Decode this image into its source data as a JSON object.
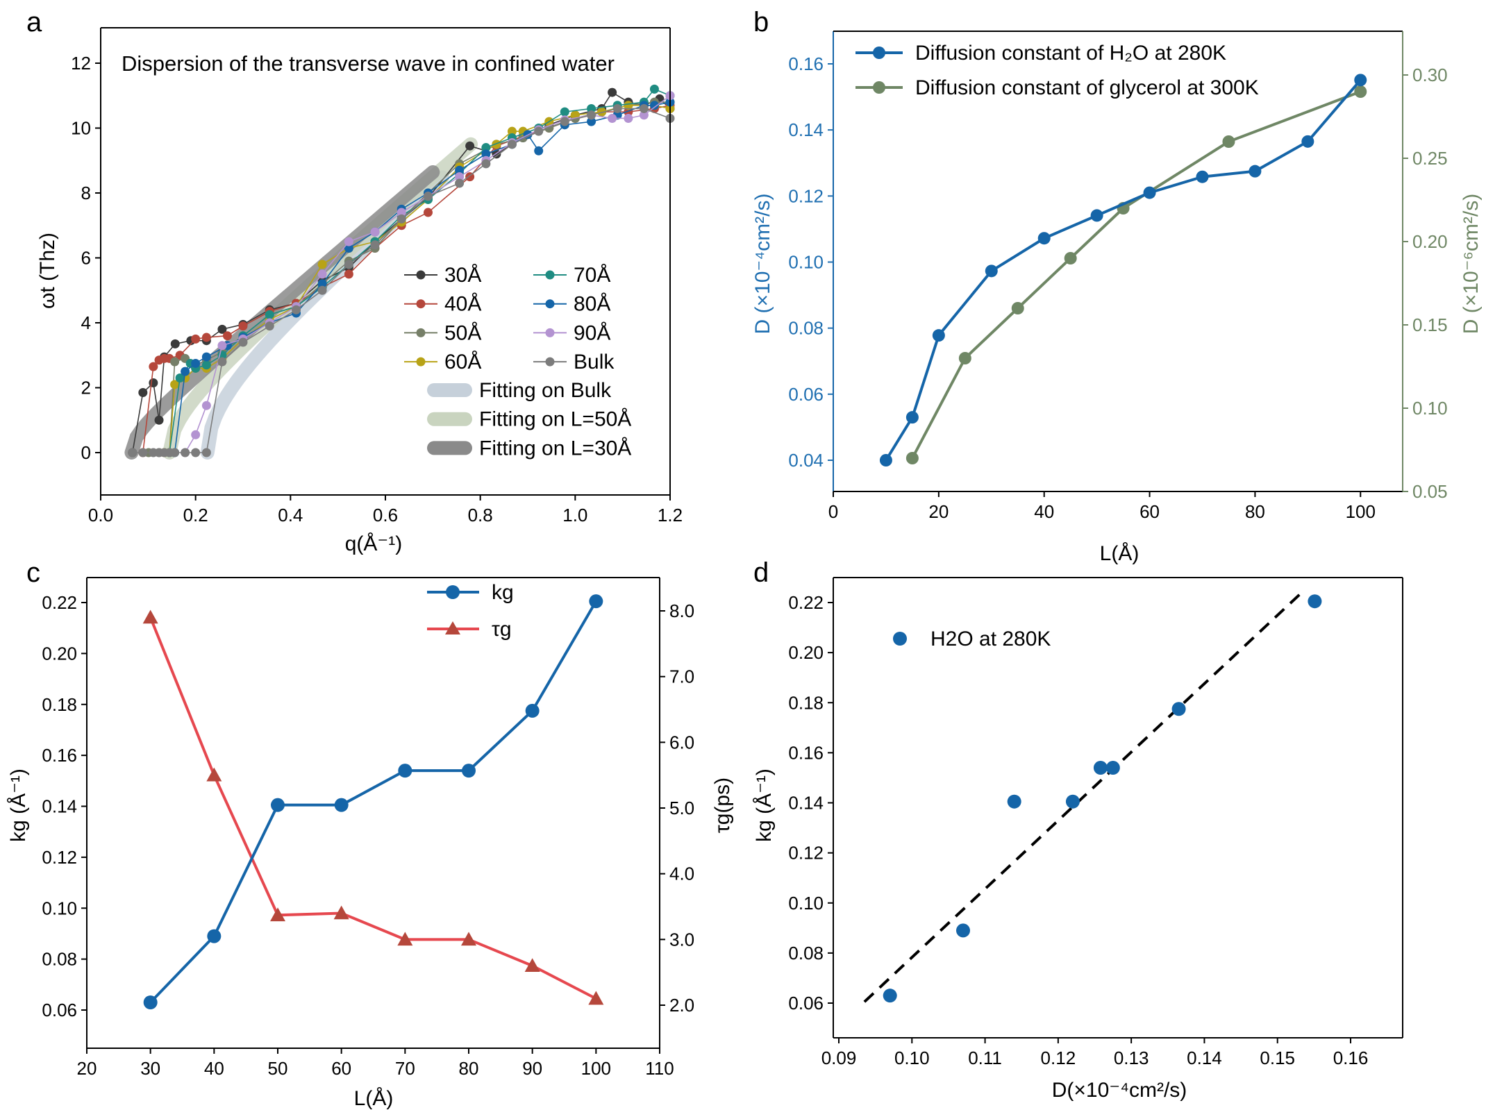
{
  "chart_data": [
    {
      "panel": "a",
      "type": "line",
      "title": "Dispersion of the transverse wave in confined water",
      "xlabel": "q(Å⁻¹)",
      "ylabel": "ωt (Thz)",
      "xlim": [
        0.0,
        1.2
      ],
      "ylim": [
        -1.2,
        13
      ],
      "xticks": [
        0.0,
        0.2,
        0.4,
        0.6,
        0.8,
        1.0,
        1.2
      ],
      "yticks": [
        0,
        2,
        4,
        6,
        8,
        10,
        12
      ],
      "legend_position": "bottom-right",
      "series": [
        {
          "name": "30Å",
          "color": "#3a3a3a",
          "x": [
            0.067,
            0.089,
            0.111,
            0.123,
            0.134,
            0.157,
            0.19,
            0.223,
            0.256,
            0.3,
            0.356,
            0.412,
            0.467,
            0.523,
            0.578,
            0.634,
            0.69,
            0.778,
            0.834,
            0.89,
            0.945,
            1.0,
            1.056,
            1.078,
            1.112,
            1.145,
            1.178,
            1.2
          ],
          "y": [
            0,
            1.85,
            2.15,
            1.0,
            2.95,
            3.35,
            3.45,
            3.45,
            3.8,
            3.95,
            4.4,
            4.6,
            5.3,
            5.7,
            6.5,
            7.2,
            7.85,
            9.45,
            9.2,
            9.7,
            10.1,
            10.4,
            10.6,
            11.1,
            10.8,
            10.7,
            10.9,
            10.6
          ]
        },
        {
          "name": "40Å",
          "color": "#b5473b",
          "x": [
            0.089,
            0.111,
            0.123,
            0.134,
            0.145,
            0.167,
            0.2,
            0.223,
            0.267,
            0.3,
            0.356,
            0.412,
            0.467,
            0.523,
            0.578,
            0.634,
            0.69,
            0.778,
            0.834,
            0.89,
            0.945,
            1.0,
            1.056,
            1.112,
            1.167,
            1.2
          ],
          "y": [
            0,
            2.65,
            2.85,
            2.9,
            2.9,
            3.0,
            3.5,
            3.55,
            3.6,
            3.9,
            4.35,
            4.6,
            5.1,
            5.5,
            6.3,
            7.0,
            7.4,
            8.5,
            9.45,
            9.75,
            10.0,
            10.3,
            10.5,
            10.5,
            10.6,
            10.7
          ]
        },
        {
          "name": "50Å",
          "color": "#767f68",
          "x": [
            0.101,
            0.123,
            0.145,
            0.156,
            0.178,
            0.2,
            0.223,
            0.256,
            0.3,
            0.356,
            0.412,
            0.467,
            0.523,
            0.578,
            0.634,
            0.69,
            0.756,
            0.834,
            0.89,
            0.945,
            1.0,
            1.056,
            1.112,
            1.167,
            1.2
          ],
          "y": [
            0,
            0,
            0,
            2.8,
            2.9,
            2.7,
            2.85,
            3.1,
            3.6,
            4.25,
            4.5,
            5.2,
            5.9,
            6.3,
            7.2,
            8.0,
            8.9,
            9.5,
            9.7,
            10.0,
            10.3,
            10.5,
            10.7,
            10.8,
            10.8
          ]
        },
        {
          "name": "60Å",
          "color": "#b8a317",
          "x": [
            0.134,
            0.145,
            0.156,
            0.178,
            0.2,
            0.223,
            0.256,
            0.3,
            0.356,
            0.412,
            0.467,
            0.523,
            0.578,
            0.634,
            0.69,
            0.756,
            0.834,
            0.867,
            0.89,
            0.945,
            1.0,
            1.056,
            1.112,
            1.167,
            1.2
          ],
          "y": [
            0,
            0,
            2.1,
            2.3,
            2.6,
            2.6,
            2.9,
            3.5,
            4.1,
            4.5,
            5.8,
            6.3,
            6.5,
            7.1,
            7.8,
            8.8,
            9.5,
            9.9,
            9.9,
            10.2,
            10.4,
            10.5,
            10.7,
            10.7,
            10.6
          ]
        },
        {
          "name": "70Å",
          "color": "#1f8c82",
          "x": [
            0.145,
            0.167,
            0.189,
            0.2,
            0.223,
            0.256,
            0.3,
            0.356,
            0.412,
            0.467,
            0.523,
            0.578,
            0.634,
            0.69,
            0.756,
            0.812,
            0.867,
            0.923,
            0.978,
            1.034,
            1.089,
            1.145,
            1.167,
            1.2
          ],
          "y": [
            0,
            2.3,
            2.75,
            2.6,
            2.7,
            3.0,
            3.6,
            4.25,
            4.5,
            5.1,
            5.8,
            6.5,
            7.3,
            7.8,
            8.6,
            9.4,
            9.7,
            10.0,
            10.5,
            10.6,
            10.7,
            10.8,
            11.2,
            11.0
          ]
        },
        {
          "name": "80Å",
          "color": "#1565a8",
          "x": [
            0.156,
            0.178,
            0.2,
            0.223,
            0.267,
            0.3,
            0.356,
            0.412,
            0.467,
            0.523,
            0.578,
            0.634,
            0.69,
            0.756,
            0.812,
            0.867,
            0.9,
            0.923,
            0.978,
            1.034,
            1.089,
            1.145,
            1.167,
            1.2
          ],
          "y": [
            0,
            2.5,
            2.75,
            2.95,
            3.3,
            3.55,
            4.0,
            4.3,
            5.2,
            6.3,
            6.8,
            7.5,
            8.0,
            8.7,
            9.2,
            9.5,
            9.8,
            9.3,
            10.1,
            10.2,
            10.4,
            10.7,
            10.7,
            10.8
          ]
        },
        {
          "name": "90Å",
          "color": "#b393d1",
          "x": [
            0.178,
            0.2,
            0.223,
            0.256,
            0.3,
            0.356,
            0.412,
            0.467,
            0.523,
            0.578,
            0.634,
            0.69,
            0.756,
            0.812,
            0.867,
            0.923,
            0.978,
            1.034,
            1.078,
            1.112,
            1.145,
            1.2
          ],
          "y": [
            0,
            0.55,
            1.45,
            3.3,
            3.5,
            4.0,
            4.5,
            5.5,
            6.5,
            6.8,
            7.4,
            7.9,
            8.5,
            9.0,
            9.55,
            9.95,
            10.25,
            10.4,
            10.3,
            10.3,
            10.4,
            11.0
          ]
        },
        {
          "name": "Bulk",
          "color": "#7c7c7c",
          "x": [
            0.067,
            0.089,
            0.111,
            0.123,
            0.134,
            0.145,
            0.156,
            0.178,
            0.2,
            0.223,
            0.256,
            0.3,
            0.356,
            0.412,
            0.467,
            0.523,
            0.578,
            0.634,
            0.69,
            0.756,
            0.812,
            0.867,
            0.923,
            0.978,
            1.034,
            1.089,
            1.145,
            1.2
          ],
          "y": [
            0,
            0,
            0,
            0,
            0,
            0,
            0,
            0,
            0,
            0,
            2.8,
            3.4,
            3.9,
            4.4,
            5.0,
            5.8,
            6.4,
            7.2,
            7.9,
            8.3,
            8.9,
            9.5,
            9.9,
            10.2,
            10.4,
            10.6,
            10.6,
            10.3
          ]
        }
      ],
      "fits": [
        {
          "name": "Fitting on Bulk",
          "color": "#c6d0da",
          "q0": 0.225,
          "ymax_at_x": 0.72
        },
        {
          "name": "Fitting on L=50Å",
          "color": "#c9d4bf",
          "q0": 0.145,
          "ymax_at_x": 0.78
        },
        {
          "name": "Fitting on L=30Å",
          "color": "#8a8a8a",
          "q0": 0.065,
          "ymax_at_x": 0.7
        }
      ]
    },
    {
      "panel": "b",
      "type": "line",
      "xlabel": "L(Å)",
      "ylabel_left": "D (×10⁻⁴cm²/s)",
      "ylabel_right": "D (×10⁻⁶cm²/s)",
      "xlim": [
        0,
        108
      ],
      "ylim_left": [
        0.03,
        0.17
      ],
      "ylim_right": [
        0.05,
        0.33
      ],
      "xticks": [
        0,
        20,
        40,
        60,
        80,
        100
      ],
      "yticks_left": [
        0.04,
        0.06,
        0.08,
        0.1,
        0.12,
        0.14,
        0.16
      ],
      "yticks_right": [
        0.05,
        0.1,
        0.15,
        0.2,
        0.25,
        0.3
      ],
      "legend_position": "top-left",
      "series": [
        {
          "name": "Diffusion constant of H₂O at 280K",
          "axis": "left",
          "color": "#1565a8",
          "x": [
            10,
            15,
            20,
            30,
            40,
            50,
            60,
            70,
            80,
            90,
            100
          ],
          "y": [
            0.04,
            0.053,
            0.0778,
            0.0973,
            0.1072,
            0.1141,
            0.121,
            0.1258,
            0.1275,
            0.1365,
            0.1551
          ]
        },
        {
          "name": "Diffusion constant of glycerol at 300K",
          "axis": "right",
          "color": "#6f8765",
          "x": [
            15,
            25,
            35,
            45,
            55,
            75,
            100
          ],
          "y": [
            0.07,
            0.13,
            0.16,
            0.19,
            0.22,
            0.26,
            0.29
          ]
        }
      ]
    },
    {
      "panel": "c",
      "type": "line",
      "xlabel": "L(Å)",
      "ylabel_left": "kg (Å⁻¹)",
      "ylabel_right": "τg(ps)",
      "xlim": [
        20,
        110
      ],
      "ylim_left": [
        0.05,
        0.23
      ],
      "ylim_right": [
        1.36,
        8.47
      ],
      "xticks": [
        20,
        30,
        40,
        50,
        60,
        70,
        80,
        90,
        100,
        110
      ],
      "yticks_left": [
        0.06,
        0.08,
        0.1,
        0.12,
        0.14,
        0.16,
        0.18,
        0.2,
        0.22
      ],
      "yticks_right": [
        "2.0",
        "3.0",
        "4.0",
        "5.0",
        "6.0",
        "7.0",
        "8.0"
      ],
      "legend_position": "top-right",
      "series": [
        {
          "name": "kg",
          "axis": "left",
          "color": "#1565a8",
          "marker": "circle",
          "x": [
            30,
            40,
            50,
            60,
            70,
            80,
            90,
            100
          ],
          "y": [
            0.063,
            0.089,
            0.1405,
            0.1405,
            0.154,
            0.154,
            0.1775,
            0.2205
          ]
        },
        {
          "name": "τg",
          "axis": "right",
          "color": "#e6484f",
          "marker": "triangle",
          "x": [
            30,
            40,
            50,
            60,
            70,
            80,
            90,
            100
          ],
          "y": [
            7.9,
            5.5,
            3.37,
            3.4,
            3.0,
            3.0,
            2.6,
            2.1
          ]
        }
      ]
    },
    {
      "panel": "d",
      "type": "scatter",
      "xlabel": "D(×10⁻⁴cm²/s)",
      "ylabel": "kg (Å⁻¹)",
      "xlim": [
        0.09,
        0.165
      ],
      "ylim": [
        0.05,
        0.23
      ],
      "xticks": [
        0.09,
        0.1,
        0.11,
        0.12,
        0.13,
        0.14,
        0.15,
        0.16
      ],
      "yticks": [
        0.06,
        0.08,
        0.1,
        0.12,
        0.14,
        0.16,
        0.18,
        0.2,
        0.22
      ],
      "legend_position": "top-left",
      "series": [
        {
          "name": "H2O at 280K",
          "color": "#1565a8",
          "x": [
            0.097,
            0.107,
            0.114,
            0.122,
            0.1258,
            0.1275,
            0.1365,
            0.1551
          ],
          "y": [
            0.063,
            0.089,
            0.1405,
            0.1405,
            0.154,
            0.154,
            0.1775,
            0.2205
          ]
        }
      ],
      "fit_line": {
        "x": [
          0.0935,
          0.1535
        ],
        "y": [
          0.0605,
          0.2245
        ],
        "style": "dashed",
        "color": "#000000"
      }
    }
  ],
  "panel_letters": [
    "a",
    "b",
    "c",
    "d"
  ]
}
